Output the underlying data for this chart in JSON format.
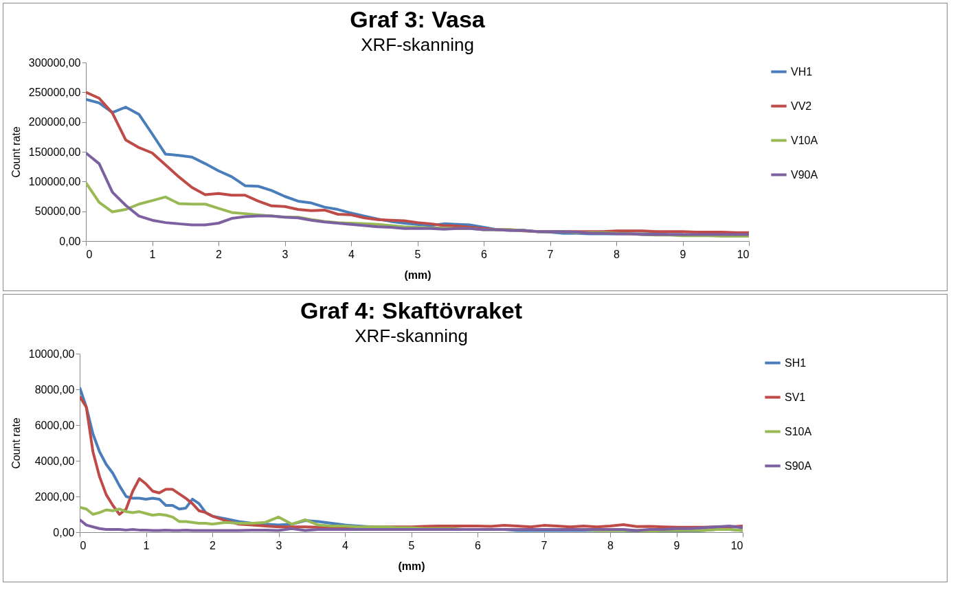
{
  "chart_data": [
    {
      "type": "line",
      "title": "Graf 3: Vasa",
      "subtitle": "XRF-skanning",
      "xlabel": "(mm)",
      "ylabel": "Count rate",
      "legend": "right",
      "grid": false,
      "x": [
        0,
        0.2,
        0.4,
        0.6,
        0.8,
        1,
        1.2,
        1.4,
        1.6,
        1.8,
        2,
        2.2,
        2.4,
        2.6,
        2.8,
        3,
        3.2,
        3.4,
        3.6,
        3.8,
        4,
        4.2,
        4.4,
        4.6,
        4.8,
        5,
        5.2,
        5.4,
        5.6,
        5.8,
        6,
        6.2,
        6.4,
        6.6,
        6.8,
        7,
        7.2,
        7.4,
        7.6,
        7.8,
        8,
        8.2,
        8.4,
        8.6,
        8.8,
        9,
        9.2,
        9.4,
        9.6,
        9.8,
        10
      ],
      "xlim": [
        0,
        10
      ],
      "xticks": [
        0,
        1,
        2,
        3,
        4,
        5,
        6,
        7,
        8,
        9,
        10
      ],
      "ylim": [
        0,
        300000
      ],
      "yticks": [
        {
          "value": 0,
          "label": "0,00"
        },
        {
          "value": 50000,
          "label": "50000,00"
        },
        {
          "value": 100000,
          "label": "100000,00"
        },
        {
          "value": 150000,
          "label": "150000,00"
        },
        {
          "value": 200000,
          "label": "200000,00"
        },
        {
          "value": 250000,
          "label": "250000,00"
        },
        {
          "value": 300000,
          "label": "300000,00"
        }
      ],
      "series": [
        {
          "name": "VH1",
          "color": "#4a7ebb",
          "values": [
            238000,
            232000,
            216000,
            225000,
            213000,
            180000,
            146000,
            144000,
            141000,
            130000,
            118000,
            108000,
            93000,
            92000,
            85000,
            75000,
            67000,
            64000,
            57000,
            53000,
            47000,
            42000,
            37000,
            33000,
            30000,
            28000,
            26000,
            29000,
            28000,
            27000,
            23000,
            19000,
            18000,
            18000,
            16000,
            15000,
            13000,
            13000,
            12000,
            12000,
            12000,
            12000,
            12000,
            12000,
            11000,
            11000,
            null,
            null,
            null,
            null,
            null
          ]
        },
        {
          "name": "VV2",
          "color": "#be4b48",
          "values": [
            250000,
            240000,
            215000,
            170000,
            157000,
            148000,
            128000,
            108000,
            90000,
            78000,
            80000,
            77000,
            77000,
            67000,
            59000,
            58000,
            53000,
            51000,
            52000,
            45000,
            44000,
            39000,
            36000,
            35000,
            34000,
            31000,
            29000,
            26000,
            25000,
            23000,
            21000,
            19000,
            19000,
            17000,
            16000,
            16000,
            16000,
            16000,
            16000,
            16000,
            17000,
            17000,
            17000,
            16000,
            16000,
            16000,
            15000,
            15000,
            15000,
            14000,
            14000
          ]
        },
        {
          "name": "V10A",
          "color": "#98b954",
          "values": [
            98000,
            65000,
            49000,
            53000,
            62000,
            68000,
            74000,
            63000,
            62000,
            62000,
            55000,
            48000,
            46000,
            44000,
            42000,
            40000,
            40000,
            36000,
            33000,
            31000,
            30000,
            29000,
            28000,
            26000,
            24000,
            23000,
            22000,
            22000,
            21000,
            21000,
            19000,
            19000,
            19000,
            18000,
            16000,
            16000,
            16000,
            14000,
            14000,
            14000,
            13000,
            12000,
            11000,
            10000,
            10000,
            9000,
            9000,
            9000,
            8000,
            8000,
            8000
          ]
        },
        {
          "name": "V90A",
          "color": "#7d60a0",
          "values": [
            148000,
            130000,
            82000,
            60000,
            42000,
            35000,
            31000,
            29000,
            27000,
            27000,
            30000,
            38000,
            41000,
            42000,
            42000,
            40000,
            39000,
            35000,
            32000,
            30000,
            28000,
            26000,
            24000,
            23000,
            21000,
            21000,
            21000,
            20000,
            21000,
            21000,
            19000,
            19000,
            18000,
            18000,
            16000,
            16000,
            16000,
            15000,
            13000,
            13000,
            12000,
            12000,
            11000,
            11000,
            11000,
            11000,
            11000,
            11000,
            11000,
            11000,
            11000
          ]
        }
      ]
    },
    {
      "type": "line",
      "title": "Graf 4: Skaftövraket",
      "subtitle": "XRF-skanning",
      "xlabel": "(mm)",
      "ylabel": "Count rate",
      "legend": "right",
      "grid": false,
      "x": [
        0,
        0.1,
        0.2,
        0.3,
        0.4,
        0.5,
        0.6,
        0.7,
        0.8,
        0.9,
        1,
        1.1,
        1.2,
        1.3,
        1.4,
        1.5,
        1.6,
        1.7,
        1.8,
        1.9,
        2,
        2.2,
        2.4,
        2.6,
        2.8,
        3,
        3.2,
        3.4,
        3.6,
        3.8,
        4,
        4.2,
        4.4,
        4.6,
        4.8,
        5,
        5.2,
        5.4,
        5.6,
        5.8,
        6,
        6.2,
        6.4,
        6.6,
        6.8,
        7,
        7.2,
        7.4,
        7.6,
        7.8,
        8,
        8.2,
        8.4,
        8.6,
        8.8,
        9,
        9.2,
        9.4,
        9.6,
        9.8,
        10
      ],
      "xlim": [
        0,
        10
      ],
      "xticks": [
        0,
        1,
        2,
        3,
        4,
        5,
        6,
        7,
        8,
        9,
        10
      ],
      "ylim": [
        0,
        10000
      ],
      "yticks": [
        {
          "value": 0,
          "label": "0,00"
        },
        {
          "value": 2000,
          "label": "2000,00"
        },
        {
          "value": 4000,
          "label": "4000,00"
        },
        {
          "value": 6000,
          "label": "6000,00"
        },
        {
          "value": 8000,
          "label": "8000,00"
        },
        {
          "value": 10000,
          "label": "10000,00"
        }
      ],
      "series": [
        {
          "name": "SH1",
          "color": "#4a7ebb",
          "values": [
            8100,
            7000,
            5500,
            4500,
            3800,
            3300,
            2600,
            2000,
            1900,
            1900,
            1850,
            1900,
            1850,
            1500,
            1500,
            1300,
            1350,
            1850,
            1600,
            1100,
            900,
            750,
            600,
            500,
            450,
            400,
            450,
            650,
            600,
            500,
            400,
            350,
            300,
            250,
            250,
            200,
            200,
            200,
            150,
            150,
            150,
            150,
            150,
            100,
            100,
            100,
            100,
            100,
            100,
            100,
            100,
            100,
            50,
            50,
            50,
            50,
            50,
            100,
            150,
            150,
            100
          ]
        },
        {
          "name": "SV1",
          "color": "#be4b48",
          "values": [
            7600,
            7000,
            4500,
            3100,
            2100,
            1500,
            1000,
            1300,
            2300,
            3000,
            2700,
            2300,
            2200,
            2400,
            2400,
            2150,
            1900,
            1600,
            1200,
            1100,
            900,
            650,
            450,
            400,
            350,
            300,
            300,
            300,
            280,
            250,
            250,
            280,
            300,
            300,
            300,
            300,
            330,
            350,
            350,
            350,
            350,
            330,
            380,
            350,
            300,
            380,
            350,
            300,
            350,
            300,
            350,
            420,
            320,
            330,
            300,
            280,
            280,
            280,
            300,
            300,
            350
          ]
        },
        {
          "name": "S10A",
          "color": "#98b954",
          "values": [
            1400,
            1300,
            1000,
            1100,
            1250,
            1200,
            1300,
            1150,
            1100,
            1150,
            1050,
            950,
            1000,
            950,
            850,
            600,
            600,
            550,
            500,
            500,
            450,
            550,
            500,
            500,
            550,
            850,
            450,
            700,
            400,
            350,
            350,
            300,
            300,
            300,
            250,
            250,
            200,
            200,
            200,
            150,
            150,
            150,
            150,
            150,
            150,
            150,
            150,
            150,
            150,
            100,
            100,
            100,
            100,
            50,
            100,
            100,
            100,
            100,
            150,
            150,
            100
          ]
        },
        {
          "name": "S90A",
          "color": "#7d60a0",
          "values": [
            700,
            400,
            300,
            200,
            150,
            150,
            150,
            120,
            150,
            120,
            120,
            100,
            100,
            120,
            100,
            100,
            120,
            100,
            100,
            100,
            100,
            100,
            100,
            120,
            120,
            100,
            200,
            100,
            150,
            150,
            150,
            150,
            150,
            150,
            150,
            150,
            150,
            150,
            150,
            150,
            150,
            150,
            150,
            150,
            150,
            150,
            150,
            150,
            150,
            150,
            150,
            150,
            100,
            150,
            150,
            200,
            200,
            250,
            300,
            350,
            250
          ]
        }
      ]
    }
  ]
}
